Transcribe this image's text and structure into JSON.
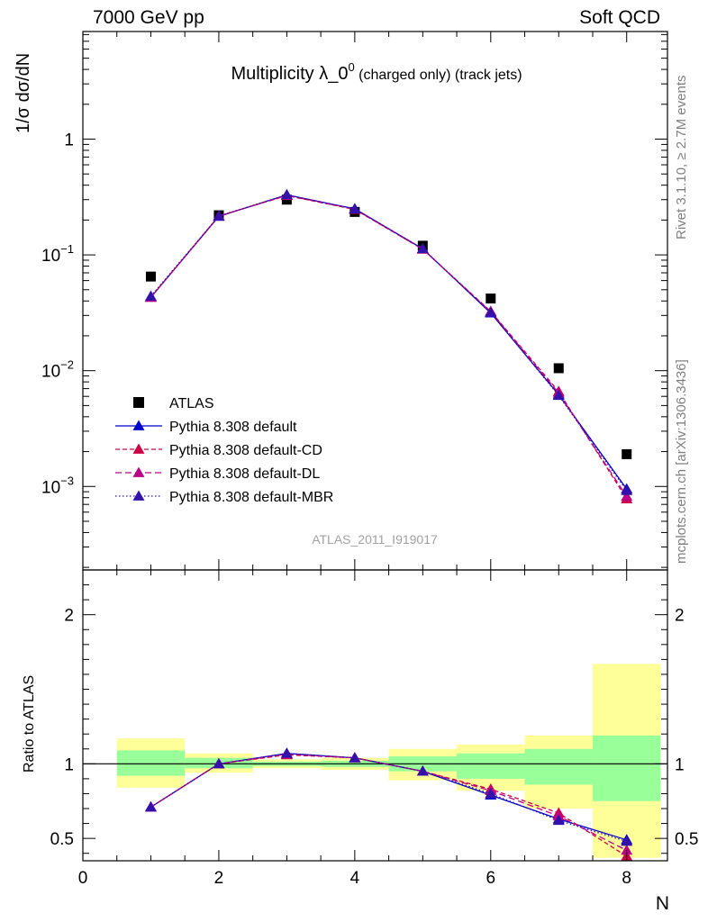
{
  "header": {
    "left": "7000 GeV pp",
    "right": "Soft QCD"
  },
  "side_labels": {
    "rivet": "Rivet 3.1.10, ≥ 2.7M events",
    "mcplots": "mcplots.cern.ch [arXiv:1306.3436]"
  },
  "chart_data": {
    "type": "scatter",
    "title_main": "Multiplicity λ_0",
    "title_sup": "0",
    "title_small": " (charged only) (track jets)",
    "watermark": "ATLAS_2011_I919017",
    "xlabel": "N",
    "xlim": [
      0,
      8.6
    ],
    "x_ticks": [
      "0",
      "2",
      "4",
      "6",
      "8"
    ],
    "top_panel": {
      "ylabel": "1/σ dσ/dN",
      "yscale": "log",
      "ylim": [
        0.00019,
        8.5
      ],
      "y_tick_labels": [
        {
          "value": 1,
          "base": "1",
          "exp": ""
        },
        {
          "value": 0.1,
          "base": "10",
          "exp": "−1"
        },
        {
          "value": 0.01,
          "base": "10",
          "exp": "−2"
        },
        {
          "value": 0.001,
          "base": "10",
          "exp": "−3"
        }
      ]
    },
    "bottom_panel": {
      "ylabel": "Ratio to ATLAS",
      "ylim": [
        0.35,
        2.3
      ],
      "y_ticks": [
        0.5,
        1,
        2
      ],
      "y_tick_labels": [
        "0.5",
        "1",
        "2"
      ]
    },
    "x": [
      1,
      2,
      3,
      4,
      5,
      6,
      7,
      8
    ],
    "data": {
      "name": "ATLAS",
      "values": [
        0.065,
        0.22,
        0.3,
        0.235,
        0.12,
        0.042,
        0.0105,
        0.0019
      ],
      "ratio_band_outer": [
        [
          0.84,
          1.17
        ],
        [
          0.94,
          1.07
        ],
        [
          0.97,
          1.03
        ],
        [
          0.96,
          1.04
        ],
        [
          0.89,
          1.1
        ],
        [
          0.82,
          1.13
        ],
        [
          0.7,
          1.19
        ],
        [
          0.37,
          1.67
        ]
      ],
      "ratio_band_inner": [
        [
          0.92,
          1.09
        ],
        [
          0.97,
          1.04
        ],
        [
          0.985,
          1.015
        ],
        [
          0.98,
          1.02
        ],
        [
          0.95,
          1.05
        ],
        [
          0.9,
          1.07
        ],
        [
          0.86,
          1.1
        ],
        [
          0.75,
          1.19
        ]
      ]
    },
    "series": [
      {
        "name": "Pythia 8.308 default",
        "color": "#0000cc",
        "dash": "",
        "values": [
          0.043,
          0.215,
          0.33,
          0.25,
          0.113,
          0.0315,
          0.0062,
          0.00095
        ],
        "ratio": [
          0.71,
          1.0,
          1.07,
          1.04,
          0.95,
          0.79,
          0.63,
          0.49
        ]
      },
      {
        "name": "Pythia 8.308 default-CD",
        "color": "#cc0044",
        "dash": "5,3",
        "values": [
          0.043,
          0.217,
          0.325,
          0.247,
          0.112,
          0.0325,
          0.0066,
          0.00078
        ],
        "ratio": [
          0.71,
          1.0,
          1.06,
          1.04,
          0.95,
          0.83,
          0.67,
          0.38
        ]
      },
      {
        "name": "Pythia 8.308 default-DL",
        "color": "#bb0088",
        "dash": "7,4",
        "values": [
          0.043,
          0.216,
          0.327,
          0.248,
          0.112,
          0.0322,
          0.0064,
          0.00082
        ],
        "ratio": [
          0.71,
          1.0,
          1.065,
          1.04,
          0.95,
          0.82,
          0.65,
          0.42
        ]
      },
      {
        "name": "Pythia 8.308 default-MBR",
        "color": "#3311aa",
        "dash": "1.5,2.5",
        "values": [
          0.044,
          0.216,
          0.33,
          0.249,
          0.113,
          0.0318,
          0.0061,
          0.00092
        ],
        "ratio": [
          0.71,
          1.0,
          1.07,
          1.04,
          0.95,
          0.8,
          0.62,
          0.48
        ]
      }
    ]
  }
}
